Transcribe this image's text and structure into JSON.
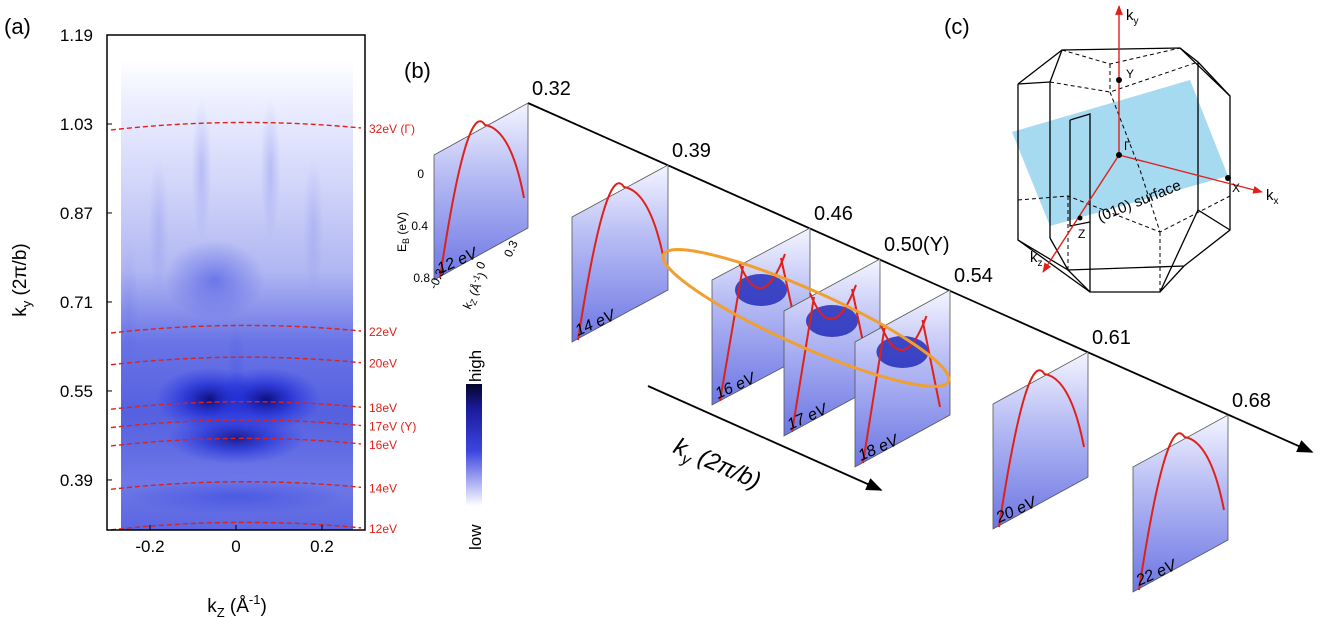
{
  "panels": {
    "a": {
      "label": "(a)"
    },
    "b": {
      "label": "(b)"
    },
    "c": {
      "label": "(c)"
    }
  },
  "chart_data": [
    {
      "type": "heatmap",
      "panel": "(a)",
      "xlabel_main": "k",
      "xlabel_sub": "Z",
      "xlabel_unit": " (Å",
      "xlabel_exp": "-1",
      "xlabel_close": ")",
      "ylabel_main": "k",
      "ylabel_sub": "y",
      "ylabel_unit": " (2π/b)",
      "xlim": [
        -0.3,
        0.3
      ],
      "ylim": [
        0.3,
        1.19
      ],
      "x_ticks": [
        -0.2,
        0,
        0.2
      ],
      "x_tick_labels": [
        "-0.2",
        "0",
        "0.2"
      ],
      "y_ticks": [
        0.39,
        0.55,
        0.71,
        0.87,
        1.03,
        1.19
      ],
      "y_tick_labels": [
        "0.39",
        "0.55",
        "0.71",
        "0.87",
        "1.03",
        "1.19"
      ],
      "colorscale": {
        "low_label": "low",
        "high_label": "high",
        "low_color": "#ffffff",
        "high_color": "#0a0a3a"
      },
      "cuts": [
        {
          "label": "32eV (Γ)",
          "ky": 1.03
        },
        {
          "label": "22eV",
          "ky": 0.665
        },
        {
          "label": "20eV",
          "ky": 0.608
        },
        {
          "label": "18eV",
          "ky": 0.528
        },
        {
          "label": "17eV (Y)",
          "ky": 0.495
        },
        {
          "label": "16eV",
          "ky": 0.462
        },
        {
          "label": "14eV",
          "ky": 0.384
        },
        {
          "label": "12eV",
          "ky": 0.311
        }
      ]
    },
    {
      "type": "other",
      "panel": "(b)",
      "axis_label_main": "k",
      "axis_label_sub": "y",
      "axis_label_unit": " (2π/b)",
      "spectra_ylabel_main": "E",
      "spectra_ylabel_sub": "B",
      "spectra_ylabel_unit": " (eV)",
      "spectra_xlabel_main": "k",
      "spectra_xlabel_sub": "Z",
      "spectra_xlabel_unit": " (Å",
      "spectra_xlabel_exp": "-1",
      "spectra_xlabel_close": ")",
      "spectra_yticks": [
        "0",
        "0.4",
        "0.8"
      ],
      "spectra_xticks": [
        "-0.3",
        "0",
        "0.3"
      ],
      "ky_ticks": [
        "0.32",
        "0.39",
        "0.46",
        "0.50(Y)",
        "0.54",
        "0.61",
        "0.68"
      ],
      "spectra": [
        {
          "label": "12 eV",
          "ky": 0.32
        },
        {
          "label": "14 eV",
          "ky": 0.39
        },
        {
          "label": "16 eV",
          "ky": 0.46
        },
        {
          "label": "17 eV",
          "ky": 0.5
        },
        {
          "label": "18 eV",
          "ky": 0.54
        },
        {
          "label": "20 eV",
          "ky": 0.61
        },
        {
          "label": "22 eV",
          "ky": 0.68
        }
      ]
    },
    {
      "type": "other",
      "panel": "(c)",
      "axes": {
        "ky_main": "k",
        "ky_sub": "y",
        "kx_main": "k",
        "kx_sub": "x",
        "kz_main": "k",
        "kz_sub": "z"
      },
      "points": [
        "Y",
        "Γ",
        "X",
        "Z"
      ],
      "surface_label": "(010) surface"
    }
  ],
  "colors": {
    "cut_line": "#e0201a",
    "band": "#e0201a",
    "ellipse": "#f0a030",
    "surface": "#87ceeb",
    "axis": "#000000"
  }
}
